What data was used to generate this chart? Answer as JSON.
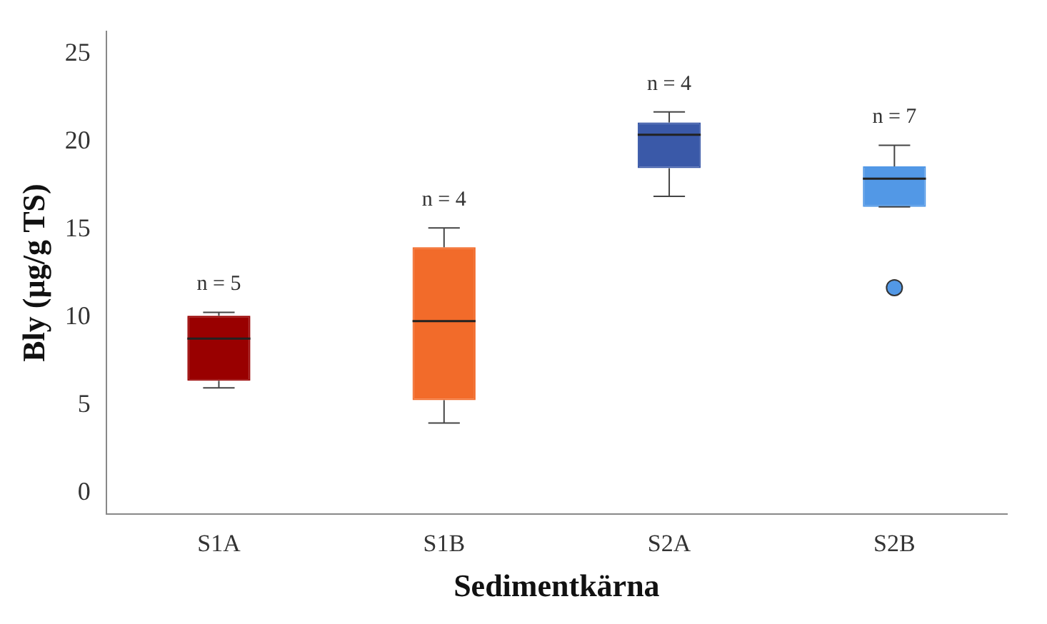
{
  "chart_data": {
    "type": "box",
    "xlabel": "Sedimentkärna",
    "ylabel": "Bly (µg/g TS)",
    "categories": [
      "S1A",
      "S1B",
      "S2A",
      "S2B"
    ],
    "colors": [
      "#990000",
      "#f26b2a",
      "#3a59a8",
      "#5298e6"
    ],
    "boxes": [
      {
        "low": 6.0,
        "q1": 6.4,
        "median": 8.8,
        "q3": 10.1,
        "high": 10.3
      },
      {
        "low": 4.0,
        "q1": 5.3,
        "median": 9.8,
        "q3": 14.0,
        "high": 15.1
      },
      {
        "low": 16.9,
        "q1": 18.5,
        "median": 20.4,
        "q3": 21.1,
        "high": 21.7
      },
      {
        "low": 16.3,
        "q1": 16.3,
        "median": 17.9,
        "q3": 18.6,
        "high": 19.8,
        "outliers": [
          11.7
        ]
      }
    ],
    "annotations": [
      "n = 5",
      "n = 4",
      "n = 4",
      "n = 7"
    ],
    "ylim": [
      -1.2,
      26.3
    ],
    "yticks": [
      0,
      5,
      10,
      15,
      20,
      25
    ],
    "grid": false,
    "legend": false
  }
}
